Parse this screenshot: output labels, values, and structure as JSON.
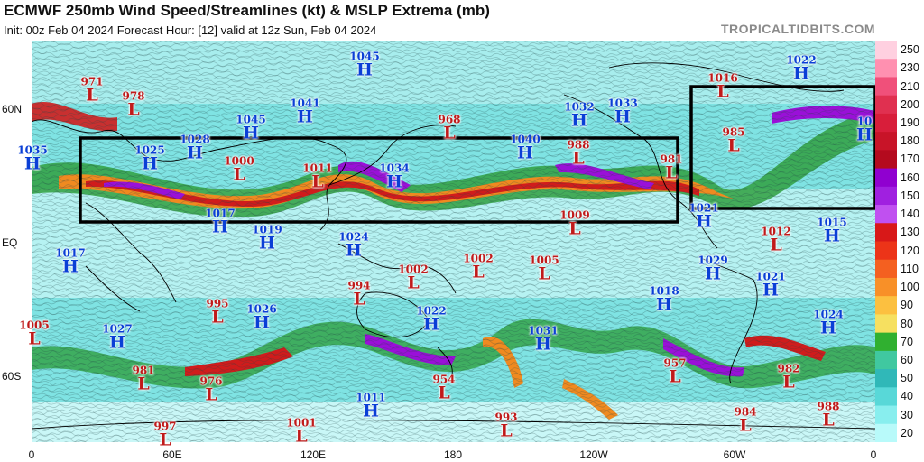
{
  "header": {
    "title": "ECMWF 250mb Wind Speed/Streamlines (kt) & MSLP Extrema (mb)",
    "subtitle": "Init: 00z Feb 04 2024   Forecast Hour: [12]   valid at 12z Sun, Feb 04 2024",
    "brand": "TROPICALTIDBITS.COM"
  },
  "axes": {
    "lat_labels": [
      "60N",
      "EQ",
      "60S"
    ],
    "lon_labels": [
      "0",
      "60E",
      "120E",
      "180",
      "120W",
      "60W",
      "0"
    ]
  },
  "colorbar": {
    "labels": [
      "250",
      "230",
      "210",
      "200",
      "190",
      "180",
      "170",
      "160",
      "150",
      "140",
      "130",
      "120",
      "110",
      "100",
      "90",
      "80",
      "70",
      "60",
      "50",
      "40",
      "30",
      "20"
    ],
    "colors": [
      "#ffd0e0",
      "#ff90b0",
      "#f0507a",
      "#e03050",
      "#d81e3a",
      "#c81428",
      "#b40a1e",
      "#9000d0",
      "#a020e0",
      "#c050f0",
      "#d81818",
      "#ec3418",
      "#f46020",
      "#f89028",
      "#fcc040",
      "#f6e060",
      "#30b030",
      "#40c8a0",
      "#30b8b8",
      "#58d8d8",
      "#88eeee",
      "#b8fafa"
    ]
  },
  "extrema": [
    {
      "type": "L",
      "value": "971"
    },
    {
      "type": "L",
      "value": "978"
    },
    {
      "type": "H",
      "value": "1035"
    },
    {
      "type": "H",
      "value": "1025"
    },
    {
      "type": "H",
      "value": "1028"
    },
    {
      "type": "H",
      "value": "1045"
    },
    {
      "type": "H",
      "value": "1041"
    },
    {
      "type": "H",
      "value": "1045"
    },
    {
      "type": "L",
      "value": "1000"
    },
    {
      "type": "L",
      "value": "1011"
    },
    {
      "type": "H",
      "value": "1034"
    },
    {
      "type": "L",
      "value": "968"
    },
    {
      "type": "H",
      "value": "1040"
    },
    {
      "type": "H",
      "value": "1032"
    },
    {
      "type": "H",
      "value": "1033"
    },
    {
      "type": "L",
      "value": "988"
    },
    {
      "type": "L",
      "value": "981"
    },
    {
      "type": "L",
      "value": "1016"
    },
    {
      "type": "H",
      "value": "1022"
    },
    {
      "type": "L",
      "value": "985"
    },
    {
      "type": "H",
      "value": "10"
    },
    {
      "type": "H",
      "value": "1017"
    },
    {
      "type": "H",
      "value": "1019"
    },
    {
      "type": "H",
      "value": "1024"
    },
    {
      "type": "L",
      "value": "1009"
    },
    {
      "type": "H",
      "value": "1021"
    },
    {
      "type": "L",
      "value": "1012"
    },
    {
      "type": "H",
      "value": "1015"
    },
    {
      "type": "H",
      "value": "1017"
    },
    {
      "type": "L",
      "value": "1002"
    },
    {
      "type": "L",
      "value": "1002"
    },
    {
      "type": "L",
      "value": "1005"
    },
    {
      "type": "L",
      "value": "994"
    },
    {
      "type": "L",
      "value": "995"
    },
    {
      "type": "H",
      "value": "1026"
    },
    {
      "type": "H",
      "value": "1022"
    },
    {
      "type": "H",
      "value": "1029"
    },
    {
      "type": "H",
      "value": "1021"
    },
    {
      "type": "H",
      "value": "1018"
    },
    {
      "type": "L",
      "value": "1005"
    },
    {
      "type": "H",
      "value": "1027"
    },
    {
      "type": "H",
      "value": "1031"
    },
    {
      "type": "H",
      "value": "1024"
    },
    {
      "type": "L",
      "value": "981"
    },
    {
      "type": "L",
      "value": "976"
    },
    {
      "type": "L",
      "value": "954"
    },
    {
      "type": "L",
      "value": "957"
    },
    {
      "type": "L",
      "value": "982"
    },
    {
      "type": "H",
      "value": "1011"
    },
    {
      "type": "L",
      "value": "997"
    },
    {
      "type": "L",
      "value": "1001"
    },
    {
      "type": "L",
      "value": "993"
    },
    {
      "type": "L",
      "value": "984"
    },
    {
      "type": "L",
      "value": "988"
    }
  ]
}
